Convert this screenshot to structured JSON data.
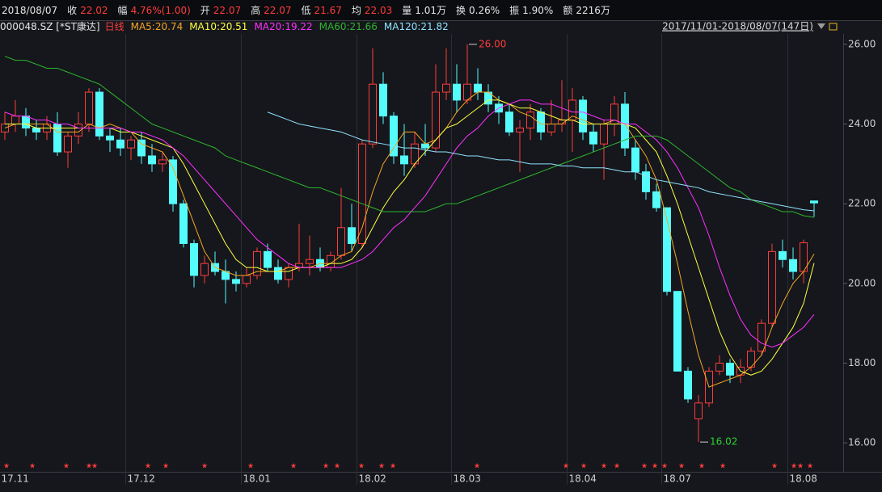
{
  "header": {
    "date": "2018/08/07",
    "items": [
      {
        "label": "收",
        "value": "22.02",
        "color": "#ff3c3c"
      },
      {
        "label": "幅",
        "value": "4.76%(1.00)",
        "color": "#ff3c3c"
      },
      {
        "label": "开",
        "value": "22.07",
        "color": "#ff3c3c"
      },
      {
        "label": "高",
        "value": "22.07",
        "color": "#ff3c3c"
      },
      {
        "label": "低",
        "value": "21.67",
        "color": "#ff3c3c"
      },
      {
        "label": "均",
        "value": "22.03",
        "color": "#ff3c3c"
      },
      {
        "label": "量",
        "value": "1.01万",
        "color": "#e6e6e6"
      },
      {
        "label": "换",
        "value": "0.26%",
        "color": "#e6e6e6"
      },
      {
        "label": "振",
        "value": "1.90%",
        "color": "#e6e6e6"
      },
      {
        "label": "额",
        "value": "2216万",
        "color": "#e6e6e6"
      }
    ]
  },
  "chart_data": {
    "type": "candlestick",
    "symbol": "000048.SZ [*ST康达]",
    "period": "日线",
    "range": "2017/11/01-2018/08/07(147日)",
    "up_color": "#ff3c3c",
    "down_color": "#54fcfc",
    "ylim": [
      15.8,
      26.2
    ],
    "yticks": [
      {
        "value": 16,
        "label": "16.00"
      },
      {
        "value": 18,
        "label": "18.00"
      },
      {
        "value": 20,
        "label": "20.00"
      },
      {
        "value": 22,
        "label": "22.00"
      },
      {
        "value": 24,
        "label": "24.00"
      },
      {
        "value": 26,
        "label": "26.00"
      }
    ],
    "categories": [
      "17.11",
      null,
      null,
      null,
      null,
      null,
      null,
      null,
      null,
      null,
      null,
      null,
      "17.12",
      null,
      null,
      null,
      null,
      null,
      null,
      null,
      null,
      null,
      null,
      "18.01",
      null,
      null,
      null,
      null,
      null,
      null,
      null,
      null,
      null,
      null,
      "18.02",
      null,
      null,
      null,
      null,
      null,
      null,
      null,
      null,
      "18.03",
      null,
      null,
      null,
      null,
      null,
      null,
      null,
      null,
      null,
      null,
      "18.04",
      null,
      null,
      null,
      null,
      null,
      null,
      null,
      null,
      "18.07",
      null,
      null,
      null,
      null,
      null,
      null,
      null,
      null,
      null,
      null,
      null,
      "18.08",
      null,
      null
    ],
    "candles": [
      [
        23.8,
        24.3,
        23.6,
        24.0
      ],
      [
        24.0,
        24.6,
        23.8,
        24.2
      ],
      [
        24.2,
        24.4,
        23.7,
        23.9
      ],
      [
        23.9,
        24.1,
        23.6,
        23.8
      ],
      [
        23.8,
        24.2,
        23.6,
        24.0
      ],
      [
        24.0,
        24.3,
        23.2,
        23.3
      ],
      [
        23.3,
        23.8,
        22.9,
        23.7
      ],
      [
        23.7,
        24.3,
        23.5,
        24.0
      ],
      [
        24.0,
        24.9,
        23.8,
        24.8
      ],
      [
        24.8,
        24.9,
        23.6,
        23.7
      ],
      [
        23.7,
        23.9,
        23.3,
        23.6
      ],
      [
        23.6,
        23.9,
        23.2,
        23.4
      ],
      [
        23.4,
        23.7,
        23.1,
        23.6
      ],
      [
        23.6,
        23.8,
        23.0,
        23.2
      ],
      [
        23.2,
        23.5,
        22.8,
        23.0
      ],
      [
        23.0,
        23.3,
        22.8,
        23.1
      ],
      [
        23.1,
        23.2,
        21.8,
        22.0
      ],
      [
        22.0,
        22.1,
        20.9,
        21.0
      ],
      [
        21.0,
        21.1,
        19.9,
        20.2
      ],
      [
        20.2,
        20.7,
        20.0,
        20.5
      ],
      [
        20.5,
        20.8,
        20.2,
        20.3
      ],
      [
        20.3,
        20.6,
        19.5,
        20.1
      ],
      [
        20.1,
        20.3,
        19.8,
        20.0
      ],
      [
        20.0,
        20.4,
        19.9,
        20.2
      ],
      [
        20.2,
        20.9,
        20.1,
        20.8
      ],
      [
        20.8,
        21.0,
        20.3,
        20.4
      ],
      [
        20.4,
        20.6,
        20.0,
        20.1
      ],
      [
        20.1,
        20.5,
        19.9,
        20.4
      ],
      [
        20.4,
        21.5,
        20.3,
        20.5
      ],
      [
        20.5,
        21.2,
        20.2,
        20.6
      ],
      [
        20.6,
        20.9,
        20.3,
        20.4
      ],
      [
        20.4,
        20.8,
        20.3,
        20.7
      ],
      [
        20.7,
        22.4,
        20.6,
        21.4
      ],
      [
        21.4,
        22.0,
        20.8,
        21.0
      ],
      [
        21.0,
        23.6,
        20.9,
        23.5
      ],
      [
        23.5,
        25.9,
        23.4,
        25.0
      ],
      [
        25.0,
        25.3,
        24.0,
        24.2
      ],
      [
        24.2,
        24.3,
        23.0,
        23.2
      ],
      [
        23.2,
        24.0,
        22.7,
        23.0
      ],
      [
        23.0,
        23.8,
        22.9,
        23.5
      ],
      [
        23.5,
        24.0,
        23.2,
        23.4
      ],
      [
        23.4,
        25.5,
        23.3,
        24.8
      ],
      [
        24.8,
        25.9,
        24.6,
        25.0
      ],
      [
        25.0,
        25.5,
        24.3,
        24.6
      ],
      [
        24.6,
        26.0,
        24.5,
        25.0
      ],
      [
        25.0,
        25.4,
        24.6,
        24.8
      ],
      [
        24.8,
        25.0,
        24.3,
        24.5
      ],
      [
        24.5,
        24.7,
        24.0,
        24.3
      ],
      [
        24.3,
        24.5,
        23.7,
        23.8
      ],
      [
        23.8,
        24.1,
        22.8,
        23.9
      ],
      [
        23.9,
        24.5,
        23.6,
        24.3
      ],
      [
        24.3,
        24.4,
        23.6,
        23.8
      ],
      [
        23.8,
        24.6,
        23.7,
        24.0
      ],
      [
        24.0,
        25.1,
        23.8,
        24.1
      ],
      [
        24.1,
        24.9,
        23.3,
        24.6
      ],
      [
        24.6,
        24.7,
        23.6,
        23.8
      ],
      [
        23.8,
        24.0,
        23.3,
        23.5
      ],
      [
        23.5,
        24.1,
        22.6,
        24.0
      ],
      [
        24.0,
        24.7,
        23.7,
        24.5
      ],
      [
        24.5,
        24.8,
        23.2,
        23.4
      ],
      [
        23.4,
        23.6,
        22.6,
        22.8
      ],
      [
        22.8,
        23.0,
        22.1,
        22.3
      ],
      [
        22.3,
        22.5,
        21.8,
        21.9
      ],
      [
        21.9,
        21.9,
        19.7,
        19.8
      ],
      [
        19.8,
        19.8,
        17.8,
        17.8
      ],
      [
        17.8,
        17.9,
        17.0,
        17.1
      ],
      [
        16.6,
        17.2,
        16.02,
        17.0
      ],
      [
        17.0,
        17.9,
        16.9,
        17.8
      ],
      [
        17.8,
        18.2,
        17.7,
        18.0
      ],
      [
        18.0,
        18.1,
        17.5,
        17.7
      ],
      [
        17.7,
        18.1,
        17.5,
        17.9
      ],
      [
        17.9,
        18.4,
        17.8,
        18.3
      ],
      [
        18.3,
        19.1,
        18.2,
        19.0
      ],
      [
        19.0,
        21.0,
        18.9,
        20.8
      ],
      [
        20.8,
        21.1,
        20.4,
        20.6
      ],
      [
        20.6,
        20.9,
        20.1,
        20.3
      ],
      [
        20.3,
        21.1,
        20.0,
        21.02
      ],
      [
        22.07,
        22.07,
        21.67,
        22.02
      ]
    ],
    "series": [
      {
        "name": "MA5:20.74",
        "color": "#f5a623",
        "values": [
          23.9,
          24.0,
          24.0,
          24.0,
          24.0,
          23.8,
          23.8,
          23.8,
          24.0,
          23.9,
          24.0,
          23.9,
          23.8,
          23.5,
          23.4,
          23.3,
          22.9,
          22.2,
          21.5,
          20.8,
          20.4,
          20.3,
          20.2,
          20.2,
          20.3,
          20.3,
          20.3,
          20.4,
          20.4,
          20.4,
          20.5,
          20.5,
          20.7,
          20.8,
          21.4,
          22.3,
          23.0,
          23.4,
          23.8,
          23.8,
          23.5,
          23.6,
          23.9,
          24.3,
          24.6,
          24.8,
          24.8,
          24.6,
          24.5,
          24.3,
          24.2,
          24.0,
          24.0,
          24.0,
          24.2,
          24.1,
          24.0,
          24.0,
          24.1,
          24.0,
          23.6,
          23.2,
          22.6,
          21.6,
          20.5,
          19.3,
          18.2,
          17.4,
          17.5,
          17.6,
          17.7,
          17.9,
          18.2,
          18.9,
          19.5,
          20.0,
          20.3,
          20.74
        ]
      },
      {
        "name": "MA10:20.51",
        "color": "#ffff40",
        "values": [
          24.0,
          24.0,
          24.0,
          23.9,
          23.9,
          23.9,
          23.9,
          23.9,
          23.9,
          23.9,
          23.9,
          23.8,
          23.8,
          23.7,
          23.6,
          23.5,
          23.4,
          23.0,
          22.5,
          22.0,
          21.5,
          21.0,
          20.6,
          20.4,
          20.4,
          20.3,
          20.3,
          20.3,
          20.4,
          20.4,
          20.4,
          20.5,
          20.5,
          20.6,
          20.9,
          21.4,
          21.9,
          22.3,
          22.6,
          23.0,
          23.3,
          23.6,
          23.9,
          24.0,
          24.2,
          24.4,
          24.6,
          24.6,
          24.5,
          24.4,
          24.4,
          24.3,
          24.2,
          24.1,
          24.1,
          24.0,
          24.0,
          24.0,
          24.0,
          24.0,
          23.9,
          23.6,
          23.3,
          22.7,
          22.0,
          21.2,
          20.4,
          19.6,
          18.8,
          18.2,
          17.8,
          17.7,
          17.8,
          18.1,
          18.5,
          18.9,
          19.5,
          20.51
        ]
      },
      {
        "name": "MA20:19.22",
        "color": "#ff30ff",
        "values": [
          24.3,
          24.2,
          24.2,
          24.1,
          24.1,
          24.0,
          24.0,
          23.9,
          23.9,
          23.9,
          23.9,
          23.9,
          23.8,
          23.8,
          23.7,
          23.6,
          23.4,
          23.2,
          22.9,
          22.6,
          22.3,
          22.0,
          21.7,
          21.4,
          21.1,
          20.9,
          20.7,
          20.5,
          20.4,
          20.4,
          20.4,
          20.4,
          20.4,
          20.5,
          20.6,
          20.8,
          21.1,
          21.4,
          21.6,
          21.9,
          22.2,
          22.6,
          23.0,
          23.4,
          23.7,
          23.9,
          24.2,
          24.4,
          24.5,
          24.6,
          24.6,
          24.5,
          24.5,
          24.4,
          24.3,
          24.3,
          24.2,
          24.1,
          24.1,
          24.0,
          24.0,
          23.8,
          23.6,
          23.3,
          22.9,
          22.4,
          21.9,
          21.2,
          20.4,
          19.7,
          19.1,
          18.7,
          18.5,
          18.4,
          18.5,
          18.7,
          18.9,
          19.22
        ]
      },
      {
        "name": "MA60:21.66",
        "color": "#2fb52f",
        "values": [
          25.7,
          25.6,
          25.6,
          25.5,
          25.4,
          25.4,
          25.3,
          25.2,
          25.1,
          25.0,
          24.8,
          24.6,
          24.4,
          24.2,
          24.0,
          23.9,
          23.8,
          23.7,
          23.6,
          23.5,
          23.4,
          23.2,
          23.1,
          23.0,
          22.9,
          22.8,
          22.7,
          22.6,
          22.5,
          22.4,
          22.4,
          22.3,
          22.2,
          22.1,
          22.0,
          21.9,
          21.8,
          21.8,
          21.8,
          21.8,
          21.8,
          21.9,
          22.0,
          22.0,
          22.1,
          22.2,
          22.3,
          22.4,
          22.5,
          22.6,
          22.7,
          22.8,
          22.9,
          23.0,
          23.1,
          23.2,
          23.3,
          23.4,
          23.5,
          23.6,
          23.7,
          23.7,
          23.7,
          23.6,
          23.4,
          23.2,
          23.0,
          22.8,
          22.6,
          22.4,
          22.3,
          22.1,
          22.0,
          21.9,
          21.8,
          21.8,
          21.7,
          21.66
        ]
      },
      {
        "name": "MA120:21.82",
        "color": "#8fe3ff",
        "values": [
          null,
          null,
          null,
          null,
          null,
          null,
          null,
          null,
          null,
          null,
          null,
          null,
          null,
          null,
          null,
          null,
          null,
          null,
          null,
          null,
          null,
          null,
          null,
          null,
          null,
          24.3,
          24.2,
          24.1,
          24.0,
          23.95,
          23.9,
          23.85,
          23.8,
          23.7,
          23.6,
          23.55,
          23.5,
          23.45,
          23.4,
          23.4,
          23.35,
          23.3,
          23.3,
          23.25,
          23.2,
          23.2,
          23.15,
          23.1,
          23.1,
          23.05,
          23.0,
          23.0,
          23.0,
          22.95,
          22.95,
          22.9,
          22.9,
          22.9,
          22.85,
          22.8,
          22.8,
          22.7,
          22.6,
          22.55,
          22.5,
          22.45,
          22.4,
          22.3,
          22.25,
          22.2,
          22.15,
          22.1,
          22.05,
          22.0,
          21.95,
          21.9,
          21.85,
          21.82
        ]
      }
    ],
    "annotations": [
      {
        "text": "26.00",
        "value": 26.0,
        "color": "#ff3c3c"
      },
      {
        "text": "16.02",
        "value": 16.02,
        "color": "#2fd02f"
      }
    ]
  }
}
